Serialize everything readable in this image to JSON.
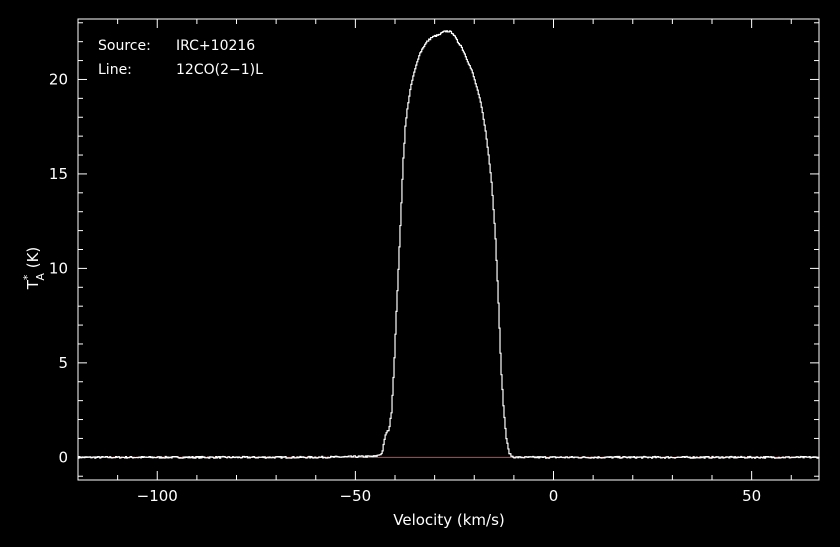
{
  "chart_data": {
    "type": "line",
    "title": "",
    "xlabel": "Velocity (km/s)",
    "ylabel": {
      "main": "T",
      "superscript": "*",
      "subscript": "A",
      "unit": " (K)"
    },
    "xlim": [
      -120,
      67
    ],
    "ylim": [
      -1.2,
      23.2
    ],
    "xticks": [
      -100,
      -50,
      0,
      50
    ],
    "xtick_labels": [
      "−100",
      "−50",
      "0",
      "50"
    ],
    "yticks": [
      0,
      5,
      10,
      15,
      20
    ],
    "ytick_labels": [
      "0",
      "5",
      "10",
      "15",
      "20"
    ],
    "annotations": [
      {
        "label": "Source:",
        "value": "IRC+10216"
      },
      {
        "label": "Line:",
        "value": "12CO(2−1)L"
      }
    ],
    "grid": false,
    "colors": {
      "background": "#000000",
      "axes": "#ffffff",
      "spectrum": "#ffffff",
      "baseline": "#ff3030"
    },
    "baseline": 0,
    "series": [
      {
        "x": [
          -120,
          -60,
          -45,
          -43.4,
          -42.5,
          -41.6,
          -41.0,
          -40.4,
          -39.6,
          -38.8,
          -38.1,
          -37.5,
          -36.9,
          -36.3,
          -35.6,
          -34.8,
          -34.0,
          -33.0,
          -32.0,
          -31.0,
          -30.0,
          -29.0,
          -28.0,
          -27.3,
          -26.5,
          -25.5,
          -24.3,
          -23.5,
          -22.6,
          -21.6,
          -20.6,
          -19.5,
          -18.4,
          -17.4,
          -16.5,
          -15.7,
          -14.8,
          -14.0,
          -13.3,
          -12.6,
          -12.0,
          -11.4,
          -10.9,
          -10.3,
          -9.6,
          0,
          67
        ],
        "y": [
          0.0,
          0.0,
          0.05,
          0.2,
          1.2,
          1.5,
          2.4,
          4.6,
          8.4,
          12.0,
          15.5,
          17.5,
          18.6,
          19.4,
          20.1,
          20.7,
          21.3,
          21.7,
          22.0,
          22.2,
          22.3,
          22.35,
          22.5,
          22.55,
          22.55,
          22.45,
          22.0,
          21.8,
          21.4,
          20.9,
          20.4,
          19.6,
          18.7,
          17.5,
          16.0,
          14.5,
          11.8,
          8.2,
          4.5,
          2.3,
          1.0,
          0.3,
          0.1,
          0.02,
          0.0,
          0.0,
          0.0
        ]
      }
    ]
  }
}
